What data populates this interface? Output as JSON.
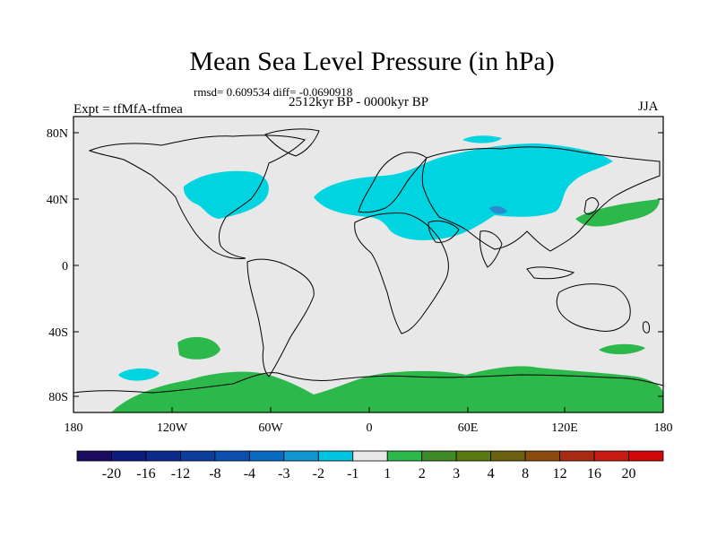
{
  "title": "Mean Sea Level Pressure (in hPa)",
  "rmsd_text": "rmsd= 0.609534 diff= -0.0690918",
  "period": "2512kyr BP - 0000kyr BP",
  "experiment": "Expt = tfMfA-tfmea",
  "season": "JJA",
  "axes": {
    "lat_labels": [
      "80N",
      "40N",
      "0",
      "40S",
      "80S"
    ],
    "lon_labels": [
      "180",
      "120W",
      "60W",
      "0",
      "60E",
      "120E",
      "180"
    ]
  },
  "legend": {
    "labels": [
      "-20",
      "-16",
      "-12",
      "-8",
      "-4",
      "-3",
      "-2",
      "-1",
      "1",
      "2",
      "3",
      "4",
      "8",
      "12",
      "16",
      "20"
    ],
    "colors": [
      "#1a0b5e",
      "#0d1a80",
      "#0b2a8c",
      "#0c3d9c",
      "#0c4fae",
      "#0a6bc2",
      "#1296d2",
      "#00c4e0",
      "#e8e8e8",
      "#2cb84a",
      "#3f8a28",
      "#5a7a10",
      "#6a6010",
      "#8a4a10",
      "#a82a10",
      "#c81a10",
      "#d00808"
    ]
  },
  "colors": {
    "land_outline": "#000000",
    "background_field": "#e8e8e8",
    "negative_anomaly": "#00d4e0",
    "positive_anomaly": "#2cb84a",
    "strong_negative": "#2a8ad2"
  }
}
